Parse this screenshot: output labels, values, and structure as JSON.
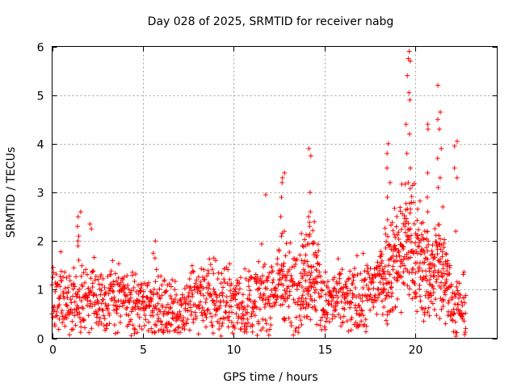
{
  "chart_data": {
    "type": "scatter",
    "title": "Day 028 of 2025, SRMTID for receiver nabg",
    "xlabel": "GPS time / hours",
    "ylabel": "SRMTID / TECUs",
    "xlim": [
      0,
      24.5
    ],
    "ylim": [
      0,
      6
    ],
    "xticks": [
      0,
      5,
      10,
      15,
      20
    ],
    "yticks": [
      0,
      1,
      2,
      3,
      4,
      5,
      6
    ],
    "grid": true,
    "marker": "+",
    "color": "#ff0000",
    "series": [
      {
        "name": "SRMTID",
        "profile": {
          "x": [
            0,
            0.5,
            1.0,
            1.4,
            1.6,
            2.0,
            2.4,
            3.0,
            3.5,
            4.0,
            4.5,
            5.0,
            5.5,
            6.0,
            6.5,
            7.0,
            7.5,
            8.0,
            8.5,
            9.0,
            9.5,
            10.0,
            10.5,
            11.0,
            11.5,
            12.0,
            12.5,
            12.8,
            13.0,
            13.5,
            14.0,
            14.3,
            14.6,
            15.0,
            15.5,
            16.0,
            16.5,
            17.0,
            17.5,
            18.0,
            18.5,
            19.0,
            19.5,
            20.0,
            20.5,
            21.0,
            21.3,
            21.7,
            22.0,
            22.5,
            22.8
          ],
          "y": [
            0.75,
            0.8,
            0.65,
            0.9,
            0.85,
            0.8,
            0.75,
            0.8,
            0.85,
            0.75,
            0.7,
            0.7,
            0.75,
            0.6,
            0.55,
            0.6,
            0.7,
            0.85,
            0.8,
            0.75,
            0.8,
            0.7,
            0.7,
            0.75,
            0.85,
            0.95,
            1.1,
            1.3,
            1.0,
            1.15,
            1.3,
            1.5,
            1.2,
            0.7,
            0.75,
            0.8,
            0.75,
            0.8,
            0.9,
            1.2,
            1.5,
            1.7,
            2.0,
            1.8,
            1.4,
            1.3,
            1.6,
            1.5,
            0.7,
            0.65,
            0.6
          ]
        },
        "spikes": [
          {
            "x": 1.45,
            "values": [
              2.6,
              2.5,
              2.3,
              2.1,
              2.0,
              1.9
            ]
          },
          {
            "x": 2.1,
            "values": [
              2.35,
              2.25
            ]
          },
          {
            "x": 5.6,
            "values": [
              2.0,
              1.75,
              1.65
            ]
          },
          {
            "x": 9.0,
            "values": [
              1.65,
              1.6
            ]
          },
          {
            "x": 11.8,
            "values": [
              2.95
            ]
          },
          {
            "x": 12.7,
            "values": [
              3.4,
              3.3,
              3.2,
              2.9,
              2.5,
              2.2,
              2.1
            ]
          },
          {
            "x": 14.2,
            "values": [
              3.9,
              3.75,
              3.0,
              2.6,
              2.5,
              2.3,
              2.1
            ]
          },
          {
            "x": 18.5,
            "values": [
              4.0,
              3.8,
              3.5,
              3.2,
              2.9
            ]
          },
          {
            "x": 19.6,
            "values": [
              5.9,
              5.75,
              5.7,
              5.4,
              5.05,
              4.9,
              4.4,
              4.2,
              3.8,
              3.5,
              3.2
            ]
          },
          {
            "x": 20.6,
            "values": [
              4.4,
              4.3,
              3.4,
              2.9,
              2.6
            ]
          },
          {
            "x": 21.3,
            "values": [
              5.2,
              4.65,
              4.5,
              4.3,
              3.9,
              3.7,
              3.3,
              3.1
            ]
          },
          {
            "x": 22.2,
            "values": [
              4.05,
              3.95,
              3.5,
              3.3,
              2.2
            ]
          }
        ]
      }
    ]
  }
}
